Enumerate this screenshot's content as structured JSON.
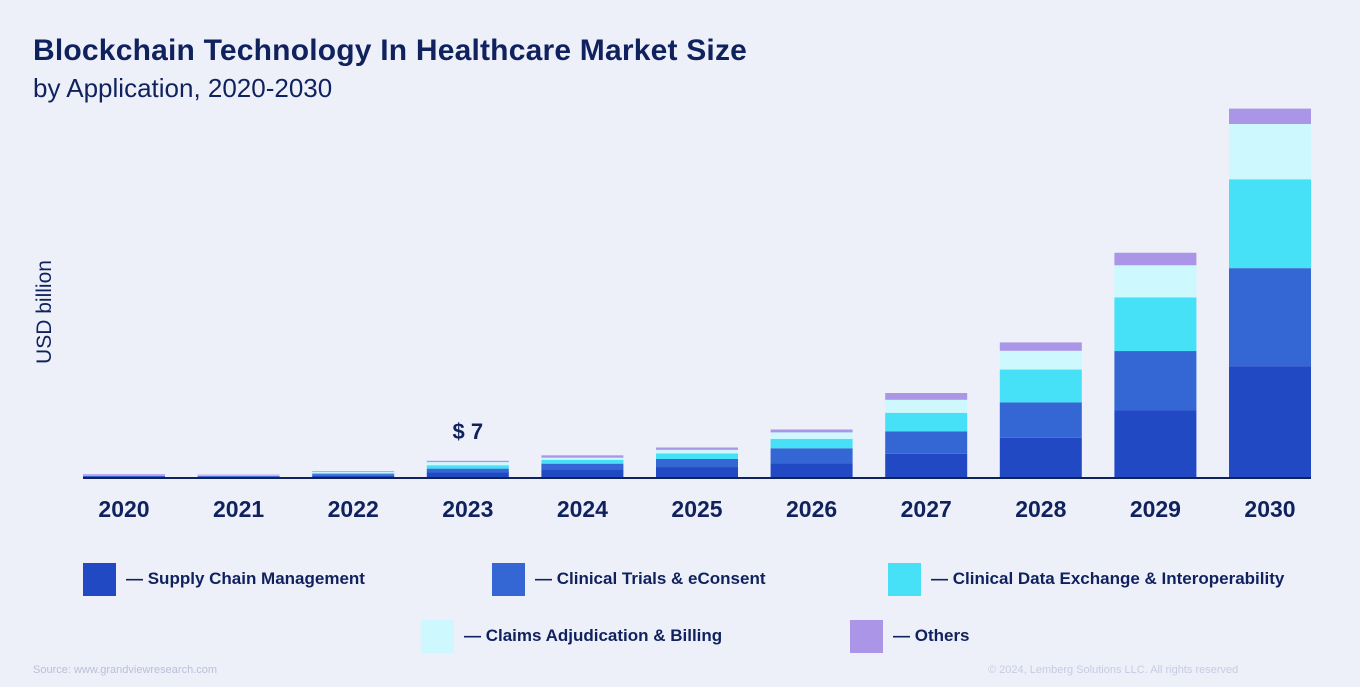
{
  "title": "Blockchain Technology In Healthcare Market Size",
  "subtitle": "by Application, 2020-2030",
  "chart_data": {
    "type": "bar",
    "stacked": true,
    "title": "Blockchain Technology In Healthcare Market Size",
    "subtitle": "by Application, 2020-2030",
    "xlabel": "",
    "ylabel": "USD billion",
    "categories": [
      "2020",
      "2021",
      "2022",
      "2023",
      "2024",
      "2025",
      "2026",
      "2027",
      "2028",
      "2029",
      "2030"
    ],
    "series": [
      {
        "name": "Supply Chain Management",
        "color": "#2249c4",
        "values": [
          0.6,
          0.5,
          0.9,
          2.1,
          3.3,
          4.2,
          5.7,
          9.3,
          15.4,
          25.9,
          42.9
        ]
      },
      {
        "name": "Clinical Trials & eConsent",
        "color": "#3466d4",
        "values": [
          0.3,
          0.3,
          0.6,
          1.5,
          2.2,
          3.1,
          5.7,
          8.6,
          13.6,
          22.8,
          37.6
        ]
      },
      {
        "name": "Clinical Data Exchange & Interoperability",
        "color": "#46e1f6",
        "values": [
          0.2,
          0.1,
          0.5,
          1.3,
          1.5,
          2.1,
          3.6,
          7.1,
          12.6,
          20.6,
          34.1
        ]
      },
      {
        "name": "Claims Adjudication & Billing",
        "color": "#cdf8fd",
        "values": [
          0.1,
          0.1,
          0.3,
          1.2,
          0.8,
          1.4,
          2.5,
          5.0,
          7.2,
          12.3,
          21.2
        ]
      },
      {
        "name": "Others",
        "color": "#ab95e7",
        "values": [
          0.3,
          0.3,
          0.3,
          0.5,
          0.9,
          0.9,
          1.1,
          2.6,
          3.2,
          4.8,
          5.9
        ]
      }
    ],
    "annotations": [
      {
        "category": "2023",
        "text": "$ 7"
      }
    ],
    "ylim": [
      0,
      145
    ],
    "grid": false,
    "legend": "bottom"
  },
  "footer": {
    "source": "Source: www.grandviewresearch.com",
    "copyright": "© 2024, Lemberg Solutions LLC. All rights reserved"
  }
}
